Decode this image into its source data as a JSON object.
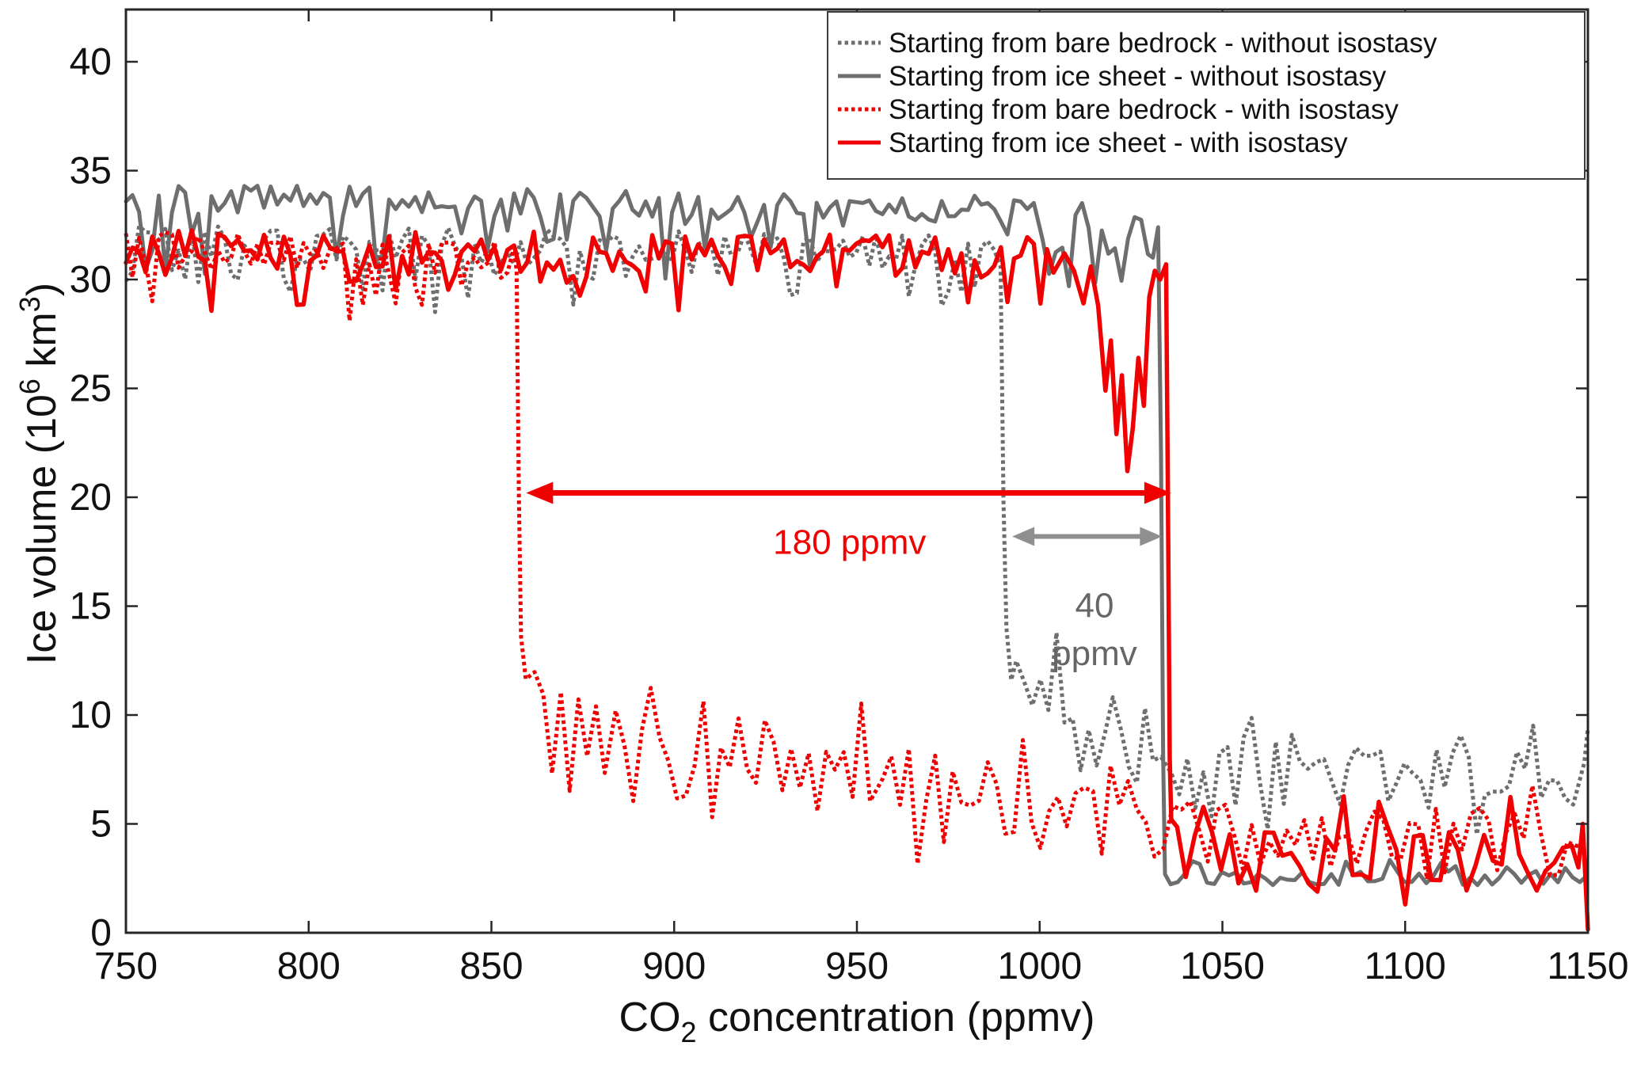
{
  "figure": {
    "background": "#ffffff"
  },
  "chart_data": {
    "type": "line",
    "title": "",
    "xlabel_parts": [
      {
        "t": "CO"
      },
      {
        "t": "2",
        "sub": true
      },
      {
        "t": " concentration (ppmv)"
      }
    ],
    "ylabel_parts": [
      {
        "t": "Ice volume (10"
      },
      {
        "t": "6",
        "sup": true
      },
      {
        "t": " km"
      },
      {
        "t": "3",
        "sup": true
      },
      {
        "t": ")"
      }
    ],
    "xlim": [
      750,
      1150
    ],
    "ylim": [
      0,
      42.4
    ],
    "xticks": [
      750,
      800,
      850,
      900,
      950,
      1000,
      1050,
      1100,
      1150
    ],
    "yticks": [
      0,
      5,
      10,
      15,
      20,
      25,
      30,
      35,
      40
    ],
    "grid": false,
    "axis_color": "#262626",
    "tick_label_color": "#111111",
    "colors": {
      "gray_line": "#6e6e6e",
      "red_line": "#f00000",
      "gray_arrow": "#8f8f8f",
      "gray_text": "#666666"
    },
    "legend": {
      "position": "top-right",
      "border_color": "#3c3c3c",
      "background": "#ffffff",
      "entries": [
        {
          "label": "Starting from bare bedrock - without isostasy",
          "color": "#6e6e6e",
          "style": "dotted"
        },
        {
          "label": "Starting from ice sheet - without isostasy",
          "color": "#6e6e6e",
          "style": "solid"
        },
        {
          "label": "Starting from bare bedrock - with isostasy",
          "color": "#f00000",
          "style": "dotted"
        },
        {
          "label": "Starting from ice sheet - with isostasy",
          "color": "#f00000",
          "style": "solid"
        }
      ]
    },
    "series": [
      {
        "name": "bare-bedrock-without-isostasy",
        "label": "Starting from bare bedrock - without isostasy",
        "color": "#6e6e6e",
        "style": "dotted",
        "width": 5,
        "seed": 11,
        "segments": [
          {
            "x0": 750,
            "x1": 988.8,
            "y0": 31.8,
            "y1": 31.2,
            "amp": 0.8,
            "dip": 2.5
          },
          {
            "points": [
              [
                989.3,
                30.6
              ],
              [
                990.1,
                19.8
              ],
              [
                990.9,
                14.0
              ],
              [
                992.2,
                11.6
              ]
            ]
          },
          {
            "x0": 993.6,
            "x1": 1034,
            "y0": 10.1,
            "y1": 8.4,
            "amp": 2.1,
            "dip": 1.5,
            "spike": 2.3,
            "step": 2.2
          },
          {
            "x0": 1036,
            "x1": 1147.6,
            "y0": 7.2,
            "y1": 7.3,
            "amp": 1.9,
            "dip": 1.1,
            "spike": 1.5,
            "step": 2.2
          },
          {
            "points": [
              [
                1149,
                7.8
              ],
              [
                1150,
                9.4
              ]
            ]
          }
        ]
      },
      {
        "name": "ice-sheet-without-isostasy",
        "label": "Starting from ice sheet - without isostasy",
        "color": "#6e6e6e",
        "style": "solid",
        "width": 5,
        "seed": 23,
        "segments": [
          {
            "x0": 750,
            "x1": 999,
            "y0": 33.7,
            "y1": 33.2,
            "amp": 0.7,
            "dip": 3.2,
            "dipP": 0.85
          },
          {
            "x0": 1000.8,
            "x1": 1029.6,
            "y0": 32.8,
            "y1": 31.8,
            "amp": 1.1,
            "dip": 3.4
          },
          {
            "points": [
              [
                1031,
                31.0
              ],
              [
                1032.4,
                32.4
              ],
              [
                1033.2,
                22.0
              ],
              [
                1033.8,
                8.0
              ],
              [
                1034.3,
                2.7
              ]
            ]
          },
          {
            "x0": 1035.8,
            "x1": 1150,
            "y0": 2.55,
            "y1": 2.5,
            "amp": 0.35,
            "spike": 0.6,
            "step": 2.0
          }
        ]
      },
      {
        "name": "bare-bedrock-with-isostasy",
        "label": "Starting from bare bedrock - with isostasy",
        "color": "#f00000",
        "style": "dotted",
        "width": 5,
        "seed": 37,
        "segments": [
          {
            "x0": 750,
            "x1": 856.4,
            "y0": 31.4,
            "y1": 30.9,
            "amp": 0.85,
            "dip": 2.7
          },
          {
            "points": [
              [
                856.9,
                30.4
              ],
              [
                857.5,
                20.3
              ],
              [
                858.1,
                13.6
              ]
            ]
          },
          {
            "x0": 859.4,
            "x1": 882,
            "y0": 9.6,
            "y1": 9.0,
            "amp": 3.5,
            "dip": 1.5,
            "spike": 2.7,
            "step": 2.4
          },
          {
            "x0": 884,
            "x1": 955,
            "y0": 8.4,
            "y1": 7.0,
            "amp": 2.8,
            "dip": 1.8,
            "spike": 2.0,
            "step": 2.4
          },
          {
            "x0": 957,
            "x1": 1034,
            "y0": 6.4,
            "y1": 5.3,
            "amp": 2.2,
            "dip": 1.5,
            "spike": 1.8,
            "step": 2.4
          },
          {
            "x0": 1036.4,
            "x1": 1150,
            "y0": 4.5,
            "y1": 4.1,
            "amp": 1.7,
            "dip": 1.0,
            "spike": 1.5,
            "step": 2.4
          }
        ]
      },
      {
        "name": "ice-sheet-with-isostasy",
        "label": "Starting from ice sheet - with isostasy",
        "color": "#f00000",
        "style": "solid",
        "width": 5.5,
        "seed": 51,
        "segments": [
          {
            "x0": 750,
            "x1": 1005,
            "y0": 31.5,
            "y1": 31.0,
            "amp": 0.95,
            "dip": 2.8
          },
          {
            "points": [
              [
                1006.8,
                31.2
              ],
              [
                1009.4,
                30.4
              ],
              [
                1012,
                28.9
              ],
              [
                1014,
                30.6
              ],
              [
                1016,
                28.8
              ],
              [
                1018,
                24.9
              ],
              [
                1019.5,
                27.2
              ],
              [
                1021,
                22.9
              ],
              [
                1022.5,
                25.6
              ],
              [
                1024,
                21.2
              ],
              [
                1025.5,
                23.2
              ],
              [
                1027,
                26.4
              ],
              [
                1028.5,
                24.2
              ],
              [
                1030,
                29.2
              ],
              [
                1031.5,
                30.4
              ],
              [
                1033,
                30.0
              ],
              [
                1034.6,
                30.7
              ],
              [
                1035.1,
                20.0
              ],
              [
                1035.6,
                8.0
              ],
              [
                1036,
                5.2
              ]
            ]
          },
          {
            "x0": 1037.6,
            "x1": 1146,
            "y0": 3.8,
            "y1": 3.5,
            "amp": 1.6,
            "dip": 1.0,
            "spike": 1.7,
            "step": 2.4
          },
          {
            "points": [
              [
                1147.4,
                3.0
              ],
              [
                1148.6,
                5.0
              ],
              [
                1150,
                0.15
              ]
            ]
          }
        ]
      }
    ],
    "annotations": {
      "arrows": [
        {
          "name": "hysteresis-width-with-isostasy",
          "x1": 859.5,
          "x2": 1036,
          "y": 20.2,
          "color": "#f00000",
          "stroke": 7,
          "head_len": 34,
          "head_halfwidth": 14
        },
        {
          "name": "hysteresis-width-without-isostasy",
          "x1": 992.5,
          "x2": 1033.5,
          "y": 18.2,
          "color": "#8f8f8f",
          "stroke": 6,
          "head_len": 28,
          "head_halfwidth": 12
        }
      ],
      "texts": [
        {
          "name": "label-180-ppmv",
          "text": "180 ppmv",
          "x": 948,
          "y": 17.4,
          "color": "#f00000"
        },
        {
          "name": "label-40",
          "text": "40",
          "x": 1015,
          "y": 14.5,
          "color": "#666666"
        },
        {
          "name": "label-40-ppmv",
          "text": "ppmv",
          "x": 1015,
          "y": 12.3,
          "color": "#666666"
        }
      ]
    }
  }
}
